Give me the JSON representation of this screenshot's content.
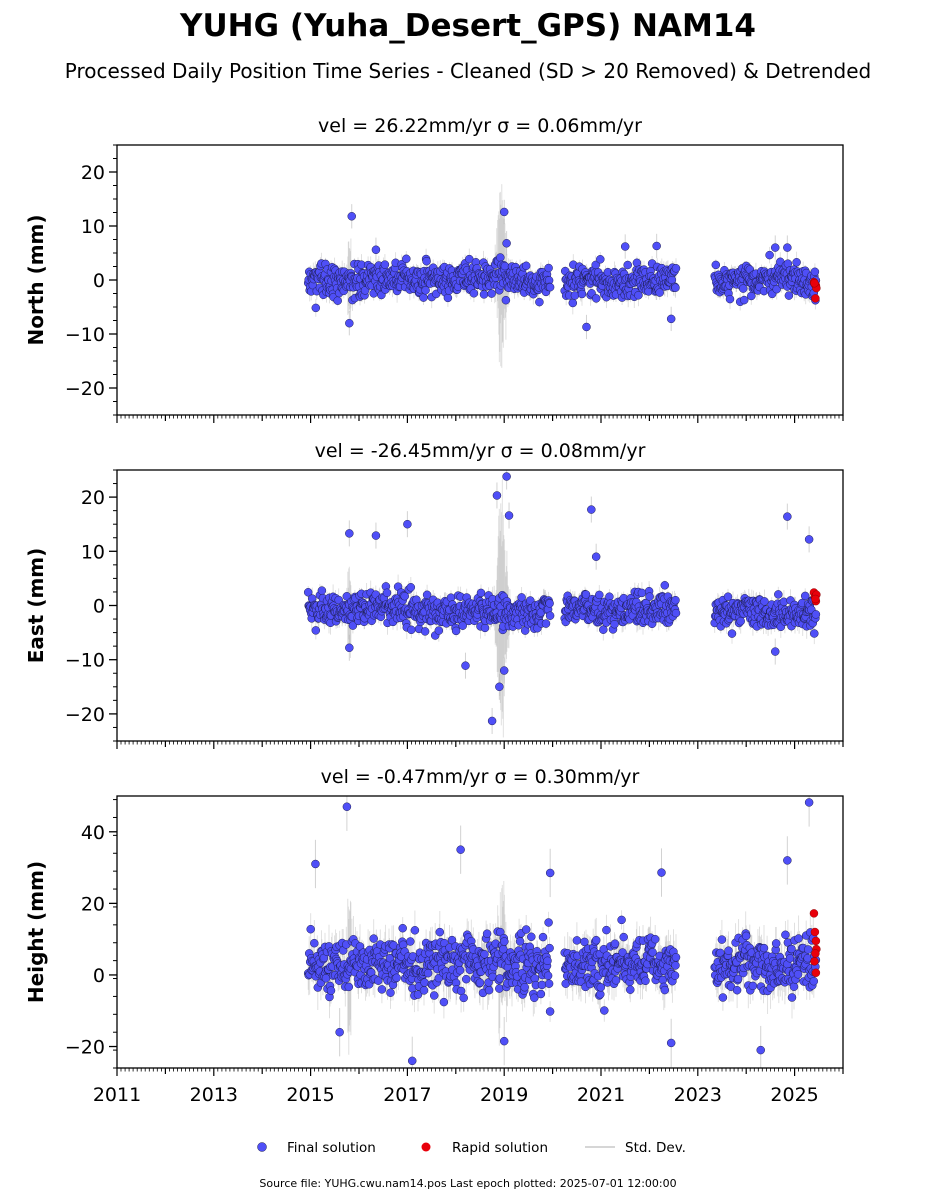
{
  "figure": {
    "title": "YUHG (Yuha_Desert_GPS) NAM14",
    "subtitle": "Processed Daily Position Time Series - Cleaned (SD > 20 Removed) & Detrended",
    "footer": "Source file: YUHG.cwu.nam14.pos  Last epoch plotted: 2025-07-01 12:00:00",
    "legend": [
      {
        "label": "Final solution",
        "marker": "dot",
        "color": "#4f4ff7"
      },
      {
        "label": "Rapid solution",
        "marker": "dot",
        "color": "#e8000b"
      },
      {
        "label": "Std. Dev.",
        "marker": "line",
        "color": "#c8c8c8"
      }
    ],
    "colors": {
      "final": "#4f4ff7",
      "rapid": "#e8000b",
      "stddev": "#b4b4b4",
      "edge": "#1e1e50"
    }
  },
  "chart_data": [
    {
      "type": "scatter",
      "title": "vel = 26.22mm/yr   σ = 0.06mm/yr",
      "ylabel": "North (mm)",
      "xlim": [
        2011,
        2026
      ],
      "ylim": [
        -25,
        25
      ],
      "yticks": [
        -20,
        -10,
        0,
        10,
        20
      ],
      "xticks": [
        2011,
        2013,
        2015,
        2017,
        2019,
        2021,
        2023,
        2025
      ],
      "show_xticklabels": false,
      "grid": false,
      "data_ranges": [
        [
          2014.95,
          2019.95
        ],
        [
          2020.25,
          2022.55
        ],
        [
          2023.35,
          2025.45
        ]
      ],
      "series": [
        {
          "name": "Final solution",
          "sigma": 2.4,
          "bias": 0,
          "outliers": [
            [
              2015.85,
              11.8
            ],
            [
              2015.8,
              -8
            ],
            [
              2019.0,
              12.6
            ],
            [
              2020.7,
              -8.7
            ],
            [
              2022.45,
              -7.2
            ],
            [
              2019.05,
              6.8
            ],
            [
              2021.5,
              6.2
            ],
            [
              2022.15,
              6.3
            ],
            [
              2024.6,
              6
            ],
            [
              2024.85,
              6
            ],
            [
              2016.35,
              5.6
            ]
          ]
        },
        {
          "name": "Rapid solution",
          "points": [
            [
              2025.4,
              -0.4
            ],
            [
              2025.42,
              -0.8
            ],
            [
              2025.44,
              -1.0
            ],
            [
              2025.45,
              -1.5
            ],
            [
              2025.43,
              -3.4
            ],
            [
              2025.41,
              -0.6
            ]
          ]
        }
      ],
      "stddev": {
        "base": 1.5,
        "burst_2018_9": 14
      }
    },
    {
      "type": "scatter",
      "title": "vel = -26.45mm/yr   σ = 0.08mm/yr",
      "ylabel": "East (mm)",
      "xlim": [
        2011,
        2026
      ],
      "ylim": [
        -25,
        25
      ],
      "yticks": [
        -20,
        -10,
        0,
        10,
        20
      ],
      "xticks": [
        2011,
        2013,
        2015,
        2017,
        2019,
        2021,
        2023,
        2025
      ],
      "show_xticklabels": false,
      "grid": false,
      "data_ranges": [
        [
          2014.95,
          2019.95
        ],
        [
          2020.25,
          2022.55
        ],
        [
          2023.35,
          2025.45
        ]
      ],
      "series": [
        {
          "name": "Final solution",
          "sigma": 2.4,
          "bias": -1,
          "outliers": [
            [
              2018.85,
              20.3
            ],
            [
              2019.05,
              23.8
            ],
            [
              2019.1,
              16.6
            ],
            [
              2018.75,
              -21.3
            ],
            [
              2020.8,
              17.7
            ],
            [
              2015.8,
              13.3
            ],
            [
              2016.35,
              12.9
            ],
            [
              2017.0,
              15.0
            ],
            [
              2024.85,
              16.4
            ],
            [
              2025.3,
              12.2
            ],
            [
              2015.8,
              -7.8
            ],
            [
              2018.2,
              -11.1
            ],
            [
              2018.9,
              -15
            ],
            [
              2019.0,
              -12
            ],
            [
              2024.6,
              -8.5
            ],
            [
              2020.9,
              9
            ]
          ]
        },
        {
          "name": "Rapid solution",
          "points": [
            [
              2025.4,
              2.4
            ],
            [
              2025.42,
              1.6
            ],
            [
              2025.44,
              0.8
            ],
            [
              2025.45,
              2.0
            ],
            [
              2025.43,
              1.2
            ]
          ]
        }
      ],
      "stddev": {
        "base": 1.6,
        "burst_2018_9": 20
      }
    },
    {
      "type": "scatter",
      "title": "vel = -0.47mm/yr   σ = 0.30mm/yr",
      "ylabel": "Height (mm)",
      "xlim": [
        2011,
        2026
      ],
      "ylim": [
        -26,
        50
      ],
      "yticks": [
        -20,
        0,
        20,
        40
      ],
      "xticks": [
        2011,
        2013,
        2015,
        2017,
        2019,
        2021,
        2023,
        2025
      ],
      "show_xticklabels": true,
      "grid": false,
      "data_ranges": [
        [
          2014.95,
          2019.95
        ],
        [
          2020.25,
          2022.55
        ],
        [
          2023.35,
          2025.45
        ]
      ],
      "series": [
        {
          "name": "Final solution",
          "sigma": 6.5,
          "bias": 3,
          "outliers": [
            [
              2015.75,
              47
            ],
            [
              2025.3,
              48.2
            ],
            [
              2018.1,
              35
            ],
            [
              2015.1,
              31
            ],
            [
              2024.85,
              32
            ],
            [
              2019.95,
              28.5
            ],
            [
              2022.25,
              28.6
            ],
            [
              2017.1,
              -24
            ],
            [
              2022.45,
              -19
            ],
            [
              2019.0,
              -18.5
            ],
            [
              2024.3,
              -21
            ],
            [
              2015.6,
              -16
            ]
          ]
        },
        {
          "name": "Rapid solution",
          "points": [
            [
              2025.4,
              17.2
            ],
            [
              2025.42,
              12
            ],
            [
              2025.44,
              9.5
            ],
            [
              2025.45,
              7.2
            ],
            [
              2025.43,
              6
            ],
            [
              2025.41,
              3.8
            ],
            [
              2025.44,
              0.6
            ]
          ]
        }
      ],
      "stddev": {
        "base": 4.5,
        "burst_2018_9": 12
      }
    }
  ]
}
